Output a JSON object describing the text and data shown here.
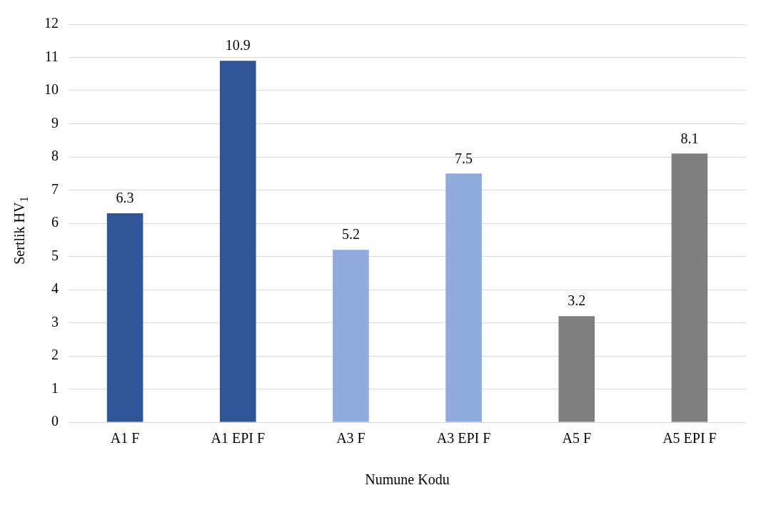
{
  "chart_data": {
    "type": "bar",
    "categories": [
      "A1 F",
      "A1 EPI F",
      "A3 F",
      "A3 EPI F",
      "A5 F",
      "A5 EPI F"
    ],
    "values": [
      6.3,
      10.9,
      5.2,
      7.5,
      3.2,
      8.1
    ],
    "colors": [
      "#2f5597",
      "#2f5597",
      "#8faadc",
      "#8faadc",
      "#7f7f7f",
      "#7f7f7f"
    ],
    "xlabel": "Numune Kodu",
    "ylabel": "Sertlik HV$_{1}$",
    "ylim": [
      0,
      12
    ],
    "yticks": [
      0,
      1,
      2,
      3,
      4,
      5,
      6,
      7,
      8,
      9,
      10,
      11,
      12
    ],
    "grid": "y",
    "data_labels": true
  }
}
